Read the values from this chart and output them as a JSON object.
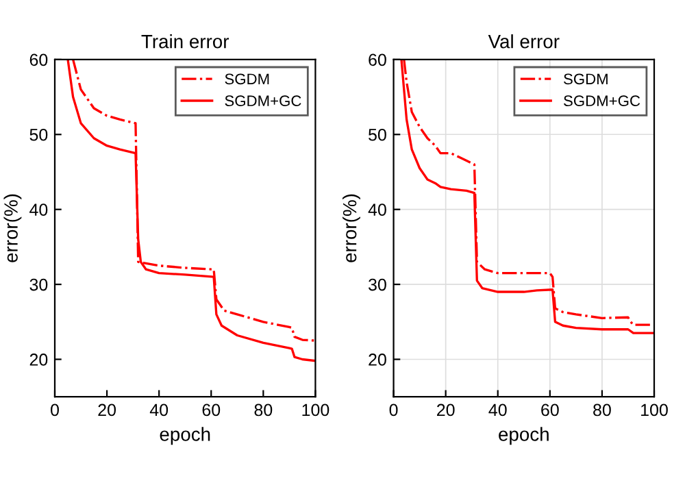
{
  "chart_data": [
    {
      "type": "line",
      "title": "Train error",
      "xlabel": "epoch",
      "ylabel": "error(%)",
      "xlim": [
        0,
        100
      ],
      "xticks": [
        0,
        20,
        40,
        60,
        80,
        100
      ],
      "ylim": [
        15,
        60
      ],
      "yticks": [
        20,
        30,
        40,
        50,
        60
      ],
      "grid": false,
      "legend": "top right",
      "series": [
        {
          "name": "SGDM",
          "color": "#ff0000",
          "line_style": "dashdot",
          "x": [
            7,
            10,
            15,
            20,
            25,
            31,
            32,
            35,
            40,
            50,
            61,
            62,
            65,
            70,
            80,
            90,
            91,
            92,
            95,
            100
          ],
          "values": [
            60,
            56,
            53.5,
            52.5,
            52,
            51.5,
            33,
            32.8,
            32.5,
            32.2,
            32,
            28,
            26.5,
            26,
            25,
            24.3,
            24.2,
            23,
            22.6,
            22.5
          ]
        },
        {
          "name": "SGDM+GC",
          "color": "#ff0000",
          "line_style": "solid",
          "x": [
            5,
            7,
            10,
            15,
            20,
            25,
            31,
            32,
            33,
            35,
            40,
            50,
            61,
            62,
            64,
            70,
            80,
            90,
            91,
            92,
            95,
            100
          ],
          "values": [
            60,
            55,
            51.5,
            49.5,
            48.5,
            48,
            47.5,
            36,
            33,
            32,
            31.5,
            31.3,
            31,
            26,
            24.5,
            23.2,
            22.2,
            21.5,
            21.4,
            20.3,
            20,
            19.8
          ]
        }
      ]
    },
    {
      "type": "line",
      "title": "Val error",
      "xlabel": "epoch",
      "ylabel": "error(%)",
      "xlim": [
        0,
        100
      ],
      "xticks": [
        0,
        20,
        40,
        60,
        80,
        100
      ],
      "ylim": [
        15,
        60
      ],
      "yticks": [
        20,
        30,
        40,
        50,
        60
      ],
      "grid": true,
      "legend": "top right",
      "series": [
        {
          "name": "SGDM",
          "color": "#ff0000",
          "line_style": "dashdot",
          "x": [
            4,
            5,
            7,
            10,
            13,
            16,
            18,
            22,
            25,
            28,
            31,
            32,
            35,
            40,
            50,
            55,
            60,
            61,
            62,
            65,
            70,
            80,
            90,
            91,
            92,
            100
          ],
          "values": [
            60,
            57,
            53,
            51,
            49.5,
            48.5,
            47.5,
            47.5,
            47,
            46.5,
            46,
            33,
            32,
            31.5,
            31.5,
            31.5,
            31.5,
            31,
            26.8,
            26.3,
            26,
            25.5,
            25.6,
            25,
            24.6,
            24.6
          ]
        },
        {
          "name": "SGDM+GC",
          "color": "#ff0000",
          "line_style": "solid",
          "x": [
            3,
            5,
            7,
            10,
            13,
            16,
            18,
            22,
            28,
            31,
            32,
            34,
            40,
            50,
            55,
            61,
            62,
            65,
            70,
            80,
            90,
            92,
            100
          ],
          "values": [
            60,
            52,
            48,
            45.5,
            44,
            43.5,
            43,
            42.7,
            42.5,
            42.2,
            30.5,
            29.5,
            29,
            29,
            29.2,
            29.3,
            25,
            24.5,
            24.2,
            24,
            24,
            23.5,
            23.5
          ]
        }
      ]
    }
  ]
}
